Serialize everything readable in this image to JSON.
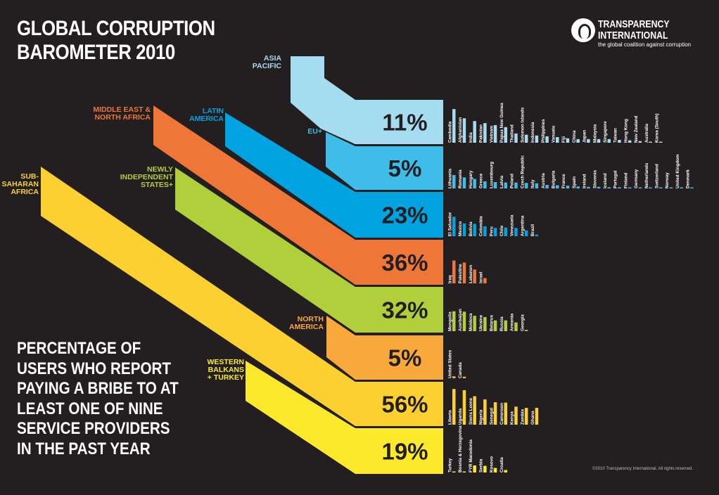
{
  "title": "GLOBAL CORRUPTION BAROMETER 2010",
  "subtitle": "PERCENTAGE OF USERS WHO REPORT PAYING A BRIBE TO AT LEAST ONE OF NINE SERVICE PROVIDERS IN THE PAST YEAR",
  "logo": {
    "line1": "TRANSPARENCY",
    "line2": "INTERNATIONAL",
    "tagline": "the global coalition against corruption"
  },
  "copyright": "©2010 Transparency International. All rights reserved.",
  "colors": {
    "background": "#231f20",
    "asia_pacific": "#a6dcef",
    "eu_plus": "#3fbde9",
    "latin_america": "#00a3e0",
    "mena": "#ee7636",
    "nis": "#b0cf3a",
    "north_america": "#f9a93b",
    "ssa": "#fcd030",
    "wb_turkey": "#fde92b"
  },
  "chart_data": {
    "type": "bar",
    "title": "GLOBAL CORRUPTION BAROMETER 2010",
    "ylabel": "",
    "regions": [
      {
        "id": "asia_pacific",
        "label": [
          "ASIA",
          "PACIFIC"
        ],
        "percent": "11%",
        "value": 11,
        "countries": [
          "Cambodia",
          "Afghanistan",
          "India",
          "Pakistan",
          "Vietnam",
          "Papua New Guinea",
          "Thailand",
          "Solomon Islands",
          "Indonesia",
          "Philippines",
          "Vanuatu",
          "Fiji",
          "China",
          "Japan",
          "Malaysia",
          "Singapore",
          "Taiwan",
          "Hong Kong",
          "New Zealand",
          "Australia",
          "Korea (South)"
        ],
        "values": [
          84,
          61,
          54,
          49,
          44,
          39,
          23,
          20,
          18,
          16,
          14,
          11,
          9,
          9,
          9,
          9,
          7,
          6,
          4,
          2,
          2
        ]
      },
      {
        "id": "eu_plus",
        "label": [
          "EU+"
        ],
        "percent": "5%",
        "value": 5,
        "countries": [
          "Lithuania",
          "Romania",
          "Hungary",
          "Greece",
          "Luxembourg",
          "Latvia",
          "Poland",
          "Czech Republic",
          "Italy",
          "Austria",
          "Bulgaria",
          "France",
          "Spain",
          "Ireland",
          "Slovenia",
          "Iceland",
          "Portugal",
          "Finland",
          "Germany",
          "Netherlands",
          "Switzerland",
          "Norway",
          "United Kingdom",
          "Denmark"
        ],
        "values": [
          34,
          28,
          24,
          18,
          16,
          15,
          15,
          14,
          13,
          9,
          8,
          7,
          5,
          4,
          4,
          3,
          3,
          2,
          2,
          2,
          2,
          1,
          1,
          0
        ]
      },
      {
        "id": "latin_america",
        "label": [
          "LATIN",
          "AMERICA"
        ],
        "percent": "23%",
        "value": 23,
        "countries": [
          "El Salvador",
          "Mexico",
          "Bolivia",
          "Colombia",
          "Peru",
          "Chile",
          "Venezuela",
          "Argentina",
          "Brazil"
        ],
        "values": [
          47,
          31,
          30,
          24,
          20,
          21,
          20,
          14,
          4
        ]
      },
      {
        "id": "mena",
        "label": [
          "MIDDLE EAST &",
          "NORTH AFRICA"
        ],
        "percent": "36%",
        "value": 36,
        "countries": [
          "Iraq",
          "Palestine",
          "Lebanon",
          "Israel"
        ],
        "values": [
          56,
          51,
          34,
          13
        ]
      },
      {
        "id": "nis",
        "label": [
          "NEWLY",
          "INDEPENDENT",
          "STATES+"
        ],
        "percent": "32%",
        "value": 32,
        "countries": [
          "Mongolia",
          "Azerbaijan",
          "Moldova",
          "Ukraine",
          "Belarus",
          "Russia",
          "Armenia",
          "Georgia"
        ],
        "values": [
          48,
          47,
          37,
          34,
          26,
          26,
          21,
          3
        ]
      },
      {
        "id": "north_america",
        "label": [
          "NORTH",
          "AMERICA"
        ],
        "percent": "5%",
        "value": 5,
        "countries": [
          "United States",
          "Canada"
        ],
        "values": [
          5,
          4
        ]
      },
      {
        "id": "ssa",
        "label": [
          "SUB-",
          "SAHARAN",
          "AFRICA"
        ],
        "percent": "56%",
        "value": 56,
        "countries": [
          "Liberia",
          "Uganda",
          "Sierra Leone",
          "Nigeria",
          "Senegal",
          "Cameroon",
          "Kenya",
          "Zambia",
          "Ghana"
        ],
        "values": [
          89,
          86,
          71,
          63,
          56,
          55,
          45,
          42,
          42
        ]
      },
      {
        "id": "wb_turkey",
        "label": [
          "WESTERN",
          "BALKANS",
          "+ TURKEY"
        ],
        "percent": "19%",
        "value": 19,
        "countries": [
          "Turkey",
          "Bosnia & Herzegovina",
          "FYR Macedonia",
          "Serbia",
          "Kosovo",
          "Croatia"
        ],
        "values": [
          2,
          2,
          17,
          16,
          11,
          6
        ]
      }
    ]
  }
}
